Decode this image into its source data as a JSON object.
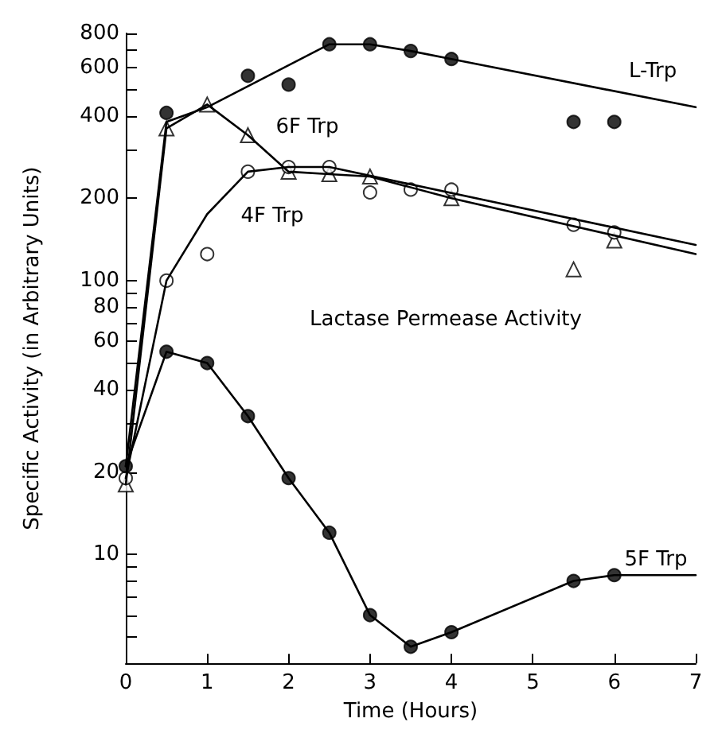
{
  "chart_data": {
    "type": "line",
    "xlabel": "Time (Hours)",
    "ylabel": "Specific Activity (in Arbitrary Units)",
    "log": "y",
    "grid": false,
    "legend": false,
    "xlim": [
      0,
      7
    ],
    "xticks": [
      0,
      1,
      2,
      3,
      4,
      5,
      6,
      7
    ],
    "ylim": [
      4,
      800
    ],
    "yticks": [
      {
        "value": 5,
        "label": null
      },
      {
        "value": 6,
        "label": null
      },
      {
        "value": 7,
        "label": null
      },
      {
        "value": 8,
        "label": null
      },
      {
        "value": 9,
        "label": null
      },
      10,
      20,
      {
        "value": 30,
        "label": null
      },
      40,
      {
        "value": 50,
        "label": null
      },
      60,
      {
        "value": 70,
        "label": null
      },
      80,
      {
        "value": 90,
        "label": null
      },
      100,
      200,
      {
        "value": 300,
        "label": null
      },
      400,
      {
        "value": 500,
        "label": null
      },
      600,
      {
        "value": 700,
        "label": null
      },
      800
    ],
    "series": [
      {
        "type": "line",
        "name": "L-Trp",
        "marker": "none",
        "color": "#000000",
        "x": [
          0,
          0.5,
          1,
          2.5,
          3,
          3.5,
          4,
          7
        ],
        "values": [
          21,
          380,
          430,
          730,
          730,
          690,
          645,
          430
        ]
      },
      {
        "type": "scatter",
        "marker": "circle",
        "color": "#000000",
        "x": [
          0.5,
          1.5,
          2,
          2.5,
          3,
          3.5,
          4,
          5.5,
          6
        ],
        "values": [
          410,
          560,
          520,
          730,
          730,
          690,
          645,
          380,
          380
        ]
      },
      {
        "type": "line",
        "name": "6F Trp",
        "marker": "none",
        "color": "#000000",
        "x": [
          0,
          0.5,
          1,
          1.5,
          2,
          2.5,
          3,
          4,
          7
        ],
        "values": [
          18,
          360,
          440,
          340,
          250,
          245,
          240,
          200,
          125
        ]
      },
      {
        "type": "scatter",
        "marker": "triangle",
        "color": "#ffffff",
        "x": [
          0,
          0.5,
          1,
          1.5,
          2,
          2.5,
          3,
          4,
          5.5,
          6
        ],
        "values": [
          18,
          360,
          440,
          340,
          250,
          245,
          240,
          200,
          110,
          140
        ]
      },
      {
        "type": "line",
        "name": "4F Trp",
        "marker": "none",
        "color": "#000000",
        "x": [
          0,
          0.5,
          1,
          1.5,
          2,
          2.5,
          7
        ],
        "values": [
          19,
          100,
          175,
          250,
          260,
          260,
          135
        ]
      },
      {
        "type": "scatter",
        "marker": "circle",
        "color": "#ffffff",
        "x": [
          0,
          0.5,
          1,
          1.5,
          2,
          2.5,
          3,
          3.5,
          4,
          5.5,
          6
        ],
        "values": [
          19,
          100,
          125,
          250,
          260,
          260,
          210,
          215,
          215,
          160,
          150
        ]
      },
      {
        "type": "line",
        "name": "5F Trp",
        "marker": "none",
        "color": "#000000",
        "x": [
          0,
          0.5,
          1,
          1.5,
          2,
          2.5,
          3,
          3.5,
          4,
          5.5,
          6,
          7
        ],
        "values": [
          21,
          55,
          50,
          32,
          19,
          12,
          6,
          4.6,
          5.2,
          8,
          8.4,
          8.4
        ]
      },
      {
        "type": "scatter",
        "marker": "circle",
        "color": "#000000",
        "x": [
          0,
          0.5,
          1,
          1.5,
          2,
          2.5,
          3,
          3.5,
          4,
          5.5,
          6
        ],
        "values": [
          21,
          55,
          50,
          32,
          19,
          12,
          6,
          4.6,
          5.2,
          8,
          8.4
        ]
      }
    ],
    "annotations": [
      "Lactase Permease Activity"
    ]
  }
}
